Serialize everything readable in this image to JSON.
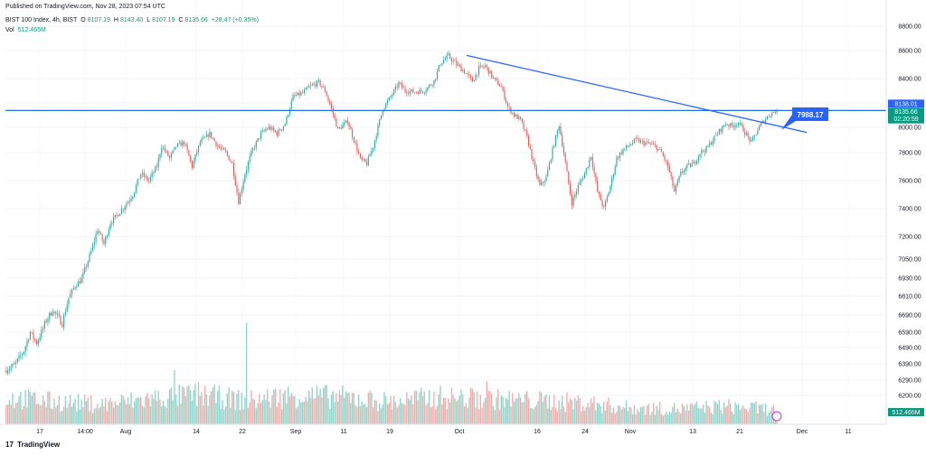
{
  "header": {
    "published": "Published on TradingView.com, Nov 28, 2023 07:54 UTC",
    "symbol": "BIST 100 Index, 4h, BIST",
    "open_label": "O",
    "open": "8107.19",
    "high_label": "H",
    "high": "8143.40",
    "low_label": "L",
    "low": "8107.19",
    "close_label": "C",
    "close": "8135.66",
    "change": "+28.47 (+0.35%)",
    "vol_label": "Vol",
    "vol": "512.465M"
  },
  "brand": {
    "logo": "17",
    "name": "TradingView"
  },
  "colors": {
    "up": "#26a69a",
    "down": "#ef5350",
    "upVol": "#8fd2c8",
    "downVol": "#f7a9a7",
    "trend": "#2962ff",
    "hline": "#2962ff",
    "price": "#089981",
    "callout": "#2962ff"
  },
  "chart_data": {
    "type": "candlestick",
    "title": "BIST 100 Index, 4h, BIST",
    "y_ticks": [
      "8800.00",
      "8600.00",
      "8400.00",
      "8200.00",
      "8000.00",
      "7800.00",
      "7600.00",
      "7400.00",
      "7200.00",
      "7050.00",
      "6930.00",
      "6810.00",
      "6690.00",
      "6590.00",
      "6490.00",
      "6390.00",
      "6290.00",
      "6200.00"
    ],
    "x_ticks": [
      "17",
      "14:00",
      "Aug",
      "14",
      "22",
      "Sep",
      "11",
      "19",
      "Oct",
      "16",
      "24",
      "Nov",
      "13",
      "21",
      "Dec",
      "11"
    ],
    "last_price": "8135.66",
    "countdown": "02:20:59",
    "level_price": "8138.01",
    "horizontal_level": 8138.01,
    "callout_label": "7988.17",
    "volume_label": "512.465M",
    "trendline": {
      "from": {
        "date": "Oct 2",
        "price": 8565
      },
      "to": {
        "date": "Nov 29",
        "price": 7960
      }
    },
    "price_path": [
      [
        0,
        6350
      ],
      [
        6,
        6380
      ],
      [
        12,
        6470
      ],
      [
        16,
        6590
      ],
      [
        20,
        6520
      ],
      [
        26,
        6660
      ],
      [
        30,
        6720
      ],
      [
        36,
        6640
      ],
      [
        40,
        6800
      ],
      [
        44,
        6880
      ],
      [
        48,
        6920
      ],
      [
        54,
        7100
      ],
      [
        58,
        7250
      ],
      [
        62,
        7150
      ],
      [
        66,
        7300
      ],
      [
        70,
        7350
      ],
      [
        75,
        7420
      ],
      [
        80,
        7500
      ],
      [
        85,
        7650
      ],
      [
        90,
        7600
      ],
      [
        95,
        7700
      ],
      [
        98,
        7850
      ],
      [
        103,
        7760
      ],
      [
        107,
        7850
      ],
      [
        112,
        7880
      ],
      [
        117,
        7700
      ],
      [
        122,
        7880
      ],
      [
        128,
        7950
      ],
      [
        133,
        7850
      ],
      [
        138,
        7800
      ],
      [
        142,
        7720
      ],
      [
        146,
        7450
      ],
      [
        150,
        7650
      ],
      [
        154,
        7800
      ],
      [
        160,
        7950
      ],
      [
        165,
        8000
      ],
      [
        170,
        7950
      ],
      [
        175,
        8030
      ],
      [
        180,
        8250
      ],
      [
        186,
        8280
      ],
      [
        190,
        8330
      ],
      [
        196,
        8370
      ],
      [
        200,
        8300
      ],
      [
        204,
        8150
      ],
      [
        208,
        7980
      ],
      [
        214,
        8050
      ],
      [
        218,
        7900
      ],
      [
        222,
        7750
      ],
      [
        226,
        7720
      ],
      [
        230,
        7850
      ],
      [
        236,
        8150
      ],
      [
        240,
        8230
      ],
      [
        246,
        8360
      ],
      [
        250,
        8300
      ],
      [
        256,
        8290
      ],
      [
        262,
        8300
      ],
      [
        268,
        8380
      ],
      [
        272,
        8510
      ],
      [
        277,
        8560
      ],
      [
        282,
        8500
      ],
      [
        287,
        8450
      ],
      [
        292,
        8380
      ],
      [
        296,
        8470
      ],
      [
        300,
        8490
      ],
      [
        305,
        8400
      ],
      [
        310,
        8330
      ],
      [
        314,
        8170
      ],
      [
        318,
        8100
      ],
      [
        322,
        8060
      ],
      [
        326,
        7920
      ],
      [
        330,
        7720
      ],
      [
        334,
        7560
      ],
      [
        338,
        7620
      ],
      [
        342,
        7820
      ],
      [
        346,
        8020
      ],
      [
        350,
        7720
      ],
      [
        354,
        7440
      ],
      [
        358,
        7560
      ],
      [
        362,
        7650
      ],
      [
        366,
        7780
      ],
      [
        370,
        7520
      ],
      [
        374,
        7400
      ],
      [
        378,
        7560
      ],
      [
        382,
        7760
      ],
      [
        386,
        7820
      ],
      [
        390,
        7860
      ],
      [
        394,
        7900
      ],
      [
        398,
        7880
      ],
      [
        402,
        7870
      ],
      [
        406,
        7850
      ],
      [
        410,
        7800
      ],
      [
        414,
        7700
      ],
      [
        418,
        7520
      ],
      [
        422,
        7650
      ],
      [
        426,
        7700
      ],
      [
        430,
        7720
      ],
      [
        434,
        7800
      ],
      [
        438,
        7830
      ],
      [
        442,
        7900
      ],
      [
        446,
        7970
      ],
      [
        450,
        8030
      ],
      [
        454,
        8010
      ],
      [
        458,
        8040
      ],
      [
        462,
        7960
      ],
      [
        466,
        7880
      ],
      [
        470,
        7980
      ],
      [
        474,
        8060
      ],
      [
        478,
        8110
      ],
      [
        481,
        8136
      ]
    ],
    "volume_path": [
      [
        0,
        30
      ],
      [
        30,
        25
      ],
      [
        60,
        22
      ],
      [
        90,
        28
      ],
      [
        120,
        33
      ],
      [
        150,
        26
      ],
      [
        180,
        32
      ],
      [
        210,
        30
      ],
      [
        240,
        25
      ],
      [
        270,
        30
      ],
      [
        300,
        28
      ],
      [
        330,
        26
      ],
      [
        360,
        24
      ],
      [
        390,
        18
      ],
      [
        420,
        17
      ],
      [
        450,
        20
      ],
      [
        481,
        16
      ]
    ],
    "volume_spikes": [
      [
        105,
        48
      ],
      [
        150,
        90
      ],
      [
        300,
        38
      ]
    ]
  }
}
